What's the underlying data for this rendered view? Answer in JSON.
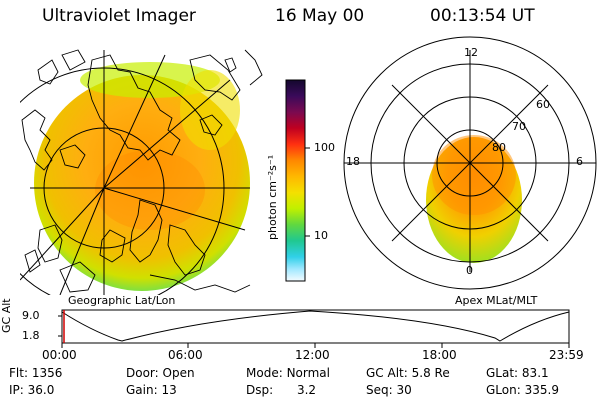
{
  "header": {
    "title": "Ultraviolet Imager",
    "date": "16 May 00",
    "time": "00:13:54 UT"
  },
  "left_panel": {
    "label": "Geographic Lat/Lon"
  },
  "colorbar": {
    "unit": "photon cm⁻²s⁻¹",
    "ticks": [
      "100",
      "10"
    ],
    "colors": [
      "#1a0a3a",
      "#3a0a5a",
      "#6a0a6a",
      "#a00030",
      "#e02020",
      "#ff6a00",
      "#ffa500",
      "#ffd000",
      "#d8f000",
      "#90e020",
      "#40d060",
      "#20c8c0",
      "#70e0ff",
      "#d0f0ff",
      "#ffffff"
    ]
  },
  "right_panel": {
    "label": "Apex MLat/MLT",
    "mlt_labels": {
      "top": "12",
      "left": "18",
      "right": "6",
      "bottom": "0"
    },
    "mlat_labels": [
      "60",
      "70",
      "80"
    ]
  },
  "timeline": {
    "ylabel": "GC Alt",
    "yticks": [
      "9.0",
      "1.8"
    ],
    "xticks": [
      "00:00",
      "06:00",
      "12:00",
      "18:00",
      "23:59"
    ]
  },
  "status": {
    "row1": [
      {
        "label": "Flt:",
        "value": "1356"
      },
      {
        "label": "Door:",
        "value": "Open"
      },
      {
        "label": "Mode:",
        "value": "Normal"
      },
      {
        "label": "GC Alt:",
        "value": "5.8 Re"
      },
      {
        "label": "GLat:",
        "value": "83.1"
      }
    ],
    "row2": [
      {
        "label": "IP:",
        "value": "36.0"
      },
      {
        "label": "Gain:",
        "value": "13"
      },
      {
        "label": "Dsp:",
        "value": "3.2"
      },
      {
        "label": "Seq:",
        "value": "30"
      },
      {
        "label": "GLon:",
        "value": "335.9"
      }
    ]
  }
}
